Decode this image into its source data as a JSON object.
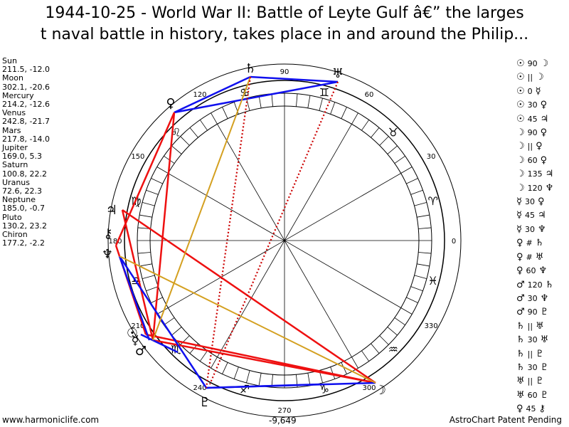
{
  "title_line1": "1944-10-25 - World War II: Battle of Leyte Gulf â€” the larges",
  "title_line2": "t naval battle in history, takes place in and around the Philip...",
  "planets": [
    {
      "name": "Sun",
      "coords": "211.5, -12.0"
    },
    {
      "name": "Moon",
      "coords": "302.1, -20.6"
    },
    {
      "name": "Mercury",
      "coords": "214.2, -12.6"
    },
    {
      "name": "Venus",
      "coords": "242.8, -21.7"
    },
    {
      "name": "Mars",
      "coords": "217.8, -14.0"
    },
    {
      "name": "Jupiter",
      "coords": "169.0, 5.3"
    },
    {
      "name": "Saturn",
      "coords": "100.8, 22.2"
    },
    {
      "name": "Uranus",
      "coords": "72.6, 22.3"
    },
    {
      "name": "Neptune",
      "coords": "185.0, -0.7"
    },
    {
      "name": "Pluto",
      "coords": "130.2, 23.2"
    },
    {
      "name": "Chiron",
      "coords": "177.2, -2.2"
    }
  ],
  "aspects": [
    {
      "p1": "☉",
      "a": "90",
      "p2": "☽"
    },
    {
      "p1": "☉",
      "a": "||",
      "p2": "☽"
    },
    {
      "p1": "☉",
      "a": "0",
      "p2": "☿"
    },
    {
      "p1": "☉",
      "a": "30",
      "p2": "♀"
    },
    {
      "p1": "☉",
      "a": "45",
      "p2": "♃"
    },
    {
      "p1": "☽",
      "a": "90",
      "p2": "♀"
    },
    {
      "p1": "☽",
      "a": "||",
      "p2": "♀"
    },
    {
      "p1": "☽",
      "a": "60",
      "p2": "♀"
    },
    {
      "p1": "☽",
      "a": "135",
      "p2": "♃"
    },
    {
      "p1": "☽",
      "a": "120",
      "p2": "♆"
    },
    {
      "p1": "☿",
      "a": "30",
      "p2": "♀"
    },
    {
      "p1": "☿",
      "a": "45",
      "p2": "♃"
    },
    {
      "p1": "☿",
      "a": "30",
      "p2": "♆"
    },
    {
      "p1": "♀",
      "a": "#",
      "p2": "♄"
    },
    {
      "p1": "♀",
      "a": "#",
      "p2": "♅"
    },
    {
      "p1": "♀",
      "a": "60",
      "p2": "♆"
    },
    {
      "p1": "♂",
      "a": "120",
      "p2": "♄"
    },
    {
      "p1": "♂",
      "a": "30",
      "p2": "♆"
    },
    {
      "p1": "♂",
      "a": "90",
      "p2": "♇"
    },
    {
      "p1": "♄",
      "a": "||",
      "p2": "♅"
    },
    {
      "p1": "♄",
      "a": "30",
      "p2": "♅"
    },
    {
      "p1": "♄",
      "a": "||",
      "p2": "♇"
    },
    {
      "p1": "♄",
      "a": "30",
      "p2": "♇"
    },
    {
      "p1": "♅",
      "a": "||",
      "p2": "♇"
    },
    {
      "p1": "♅",
      "a": "60",
      "p2": "♇"
    },
    {
      "p1": "♀",
      "a": "45",
      "p2": "⚷"
    }
  ],
  "degree_labels": [
    "0",
    "30",
    "60",
    "90",
    "120",
    "150",
    "180",
    "210",
    "240",
    "270",
    "300",
    "330"
  ],
  "bottom_value": "-9,649",
  "footer_left": "www.harmoniclife.com",
  "footer_right": "AstroChart Patent Pending"
}
